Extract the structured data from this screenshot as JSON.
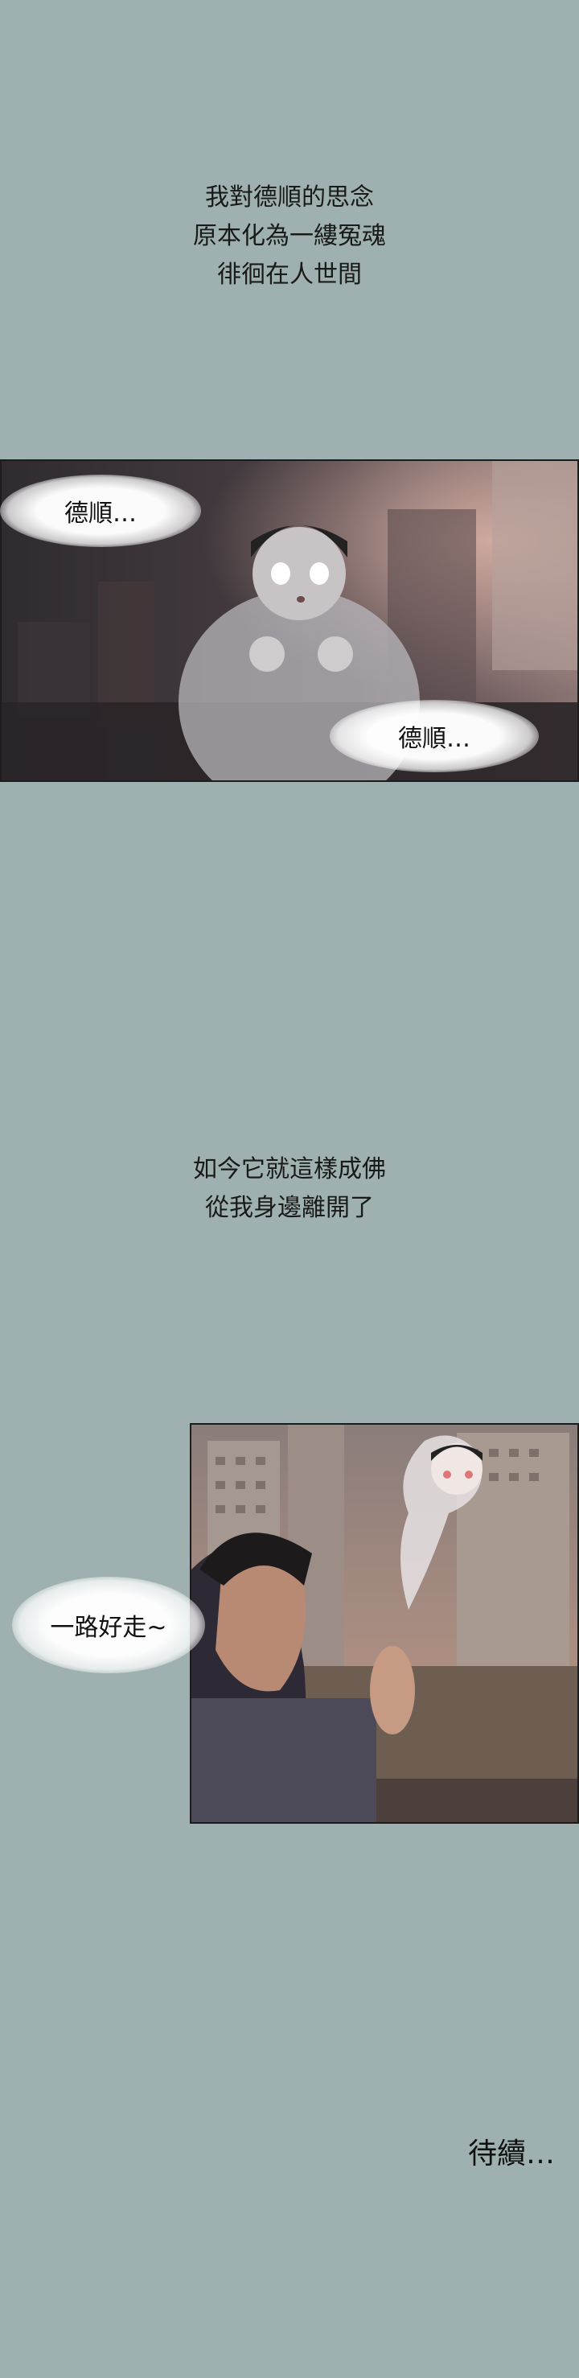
{
  "caption_1": [
    "我對德順的思念",
    "原本化為一縷冤魂",
    "徘徊在人世間"
  ],
  "panel_1": {
    "bubble_left": "德順…",
    "bubble_right": "德順…"
  },
  "caption_2": [
    "如今它就這樣成佛",
    "從我身邊離開了"
  ],
  "panel_2": {
    "bubble": "一路好走~"
  },
  "end_text": "待續…",
  "colors": {
    "background": "#9eb1b0",
    "text": "#1a1a1a"
  }
}
